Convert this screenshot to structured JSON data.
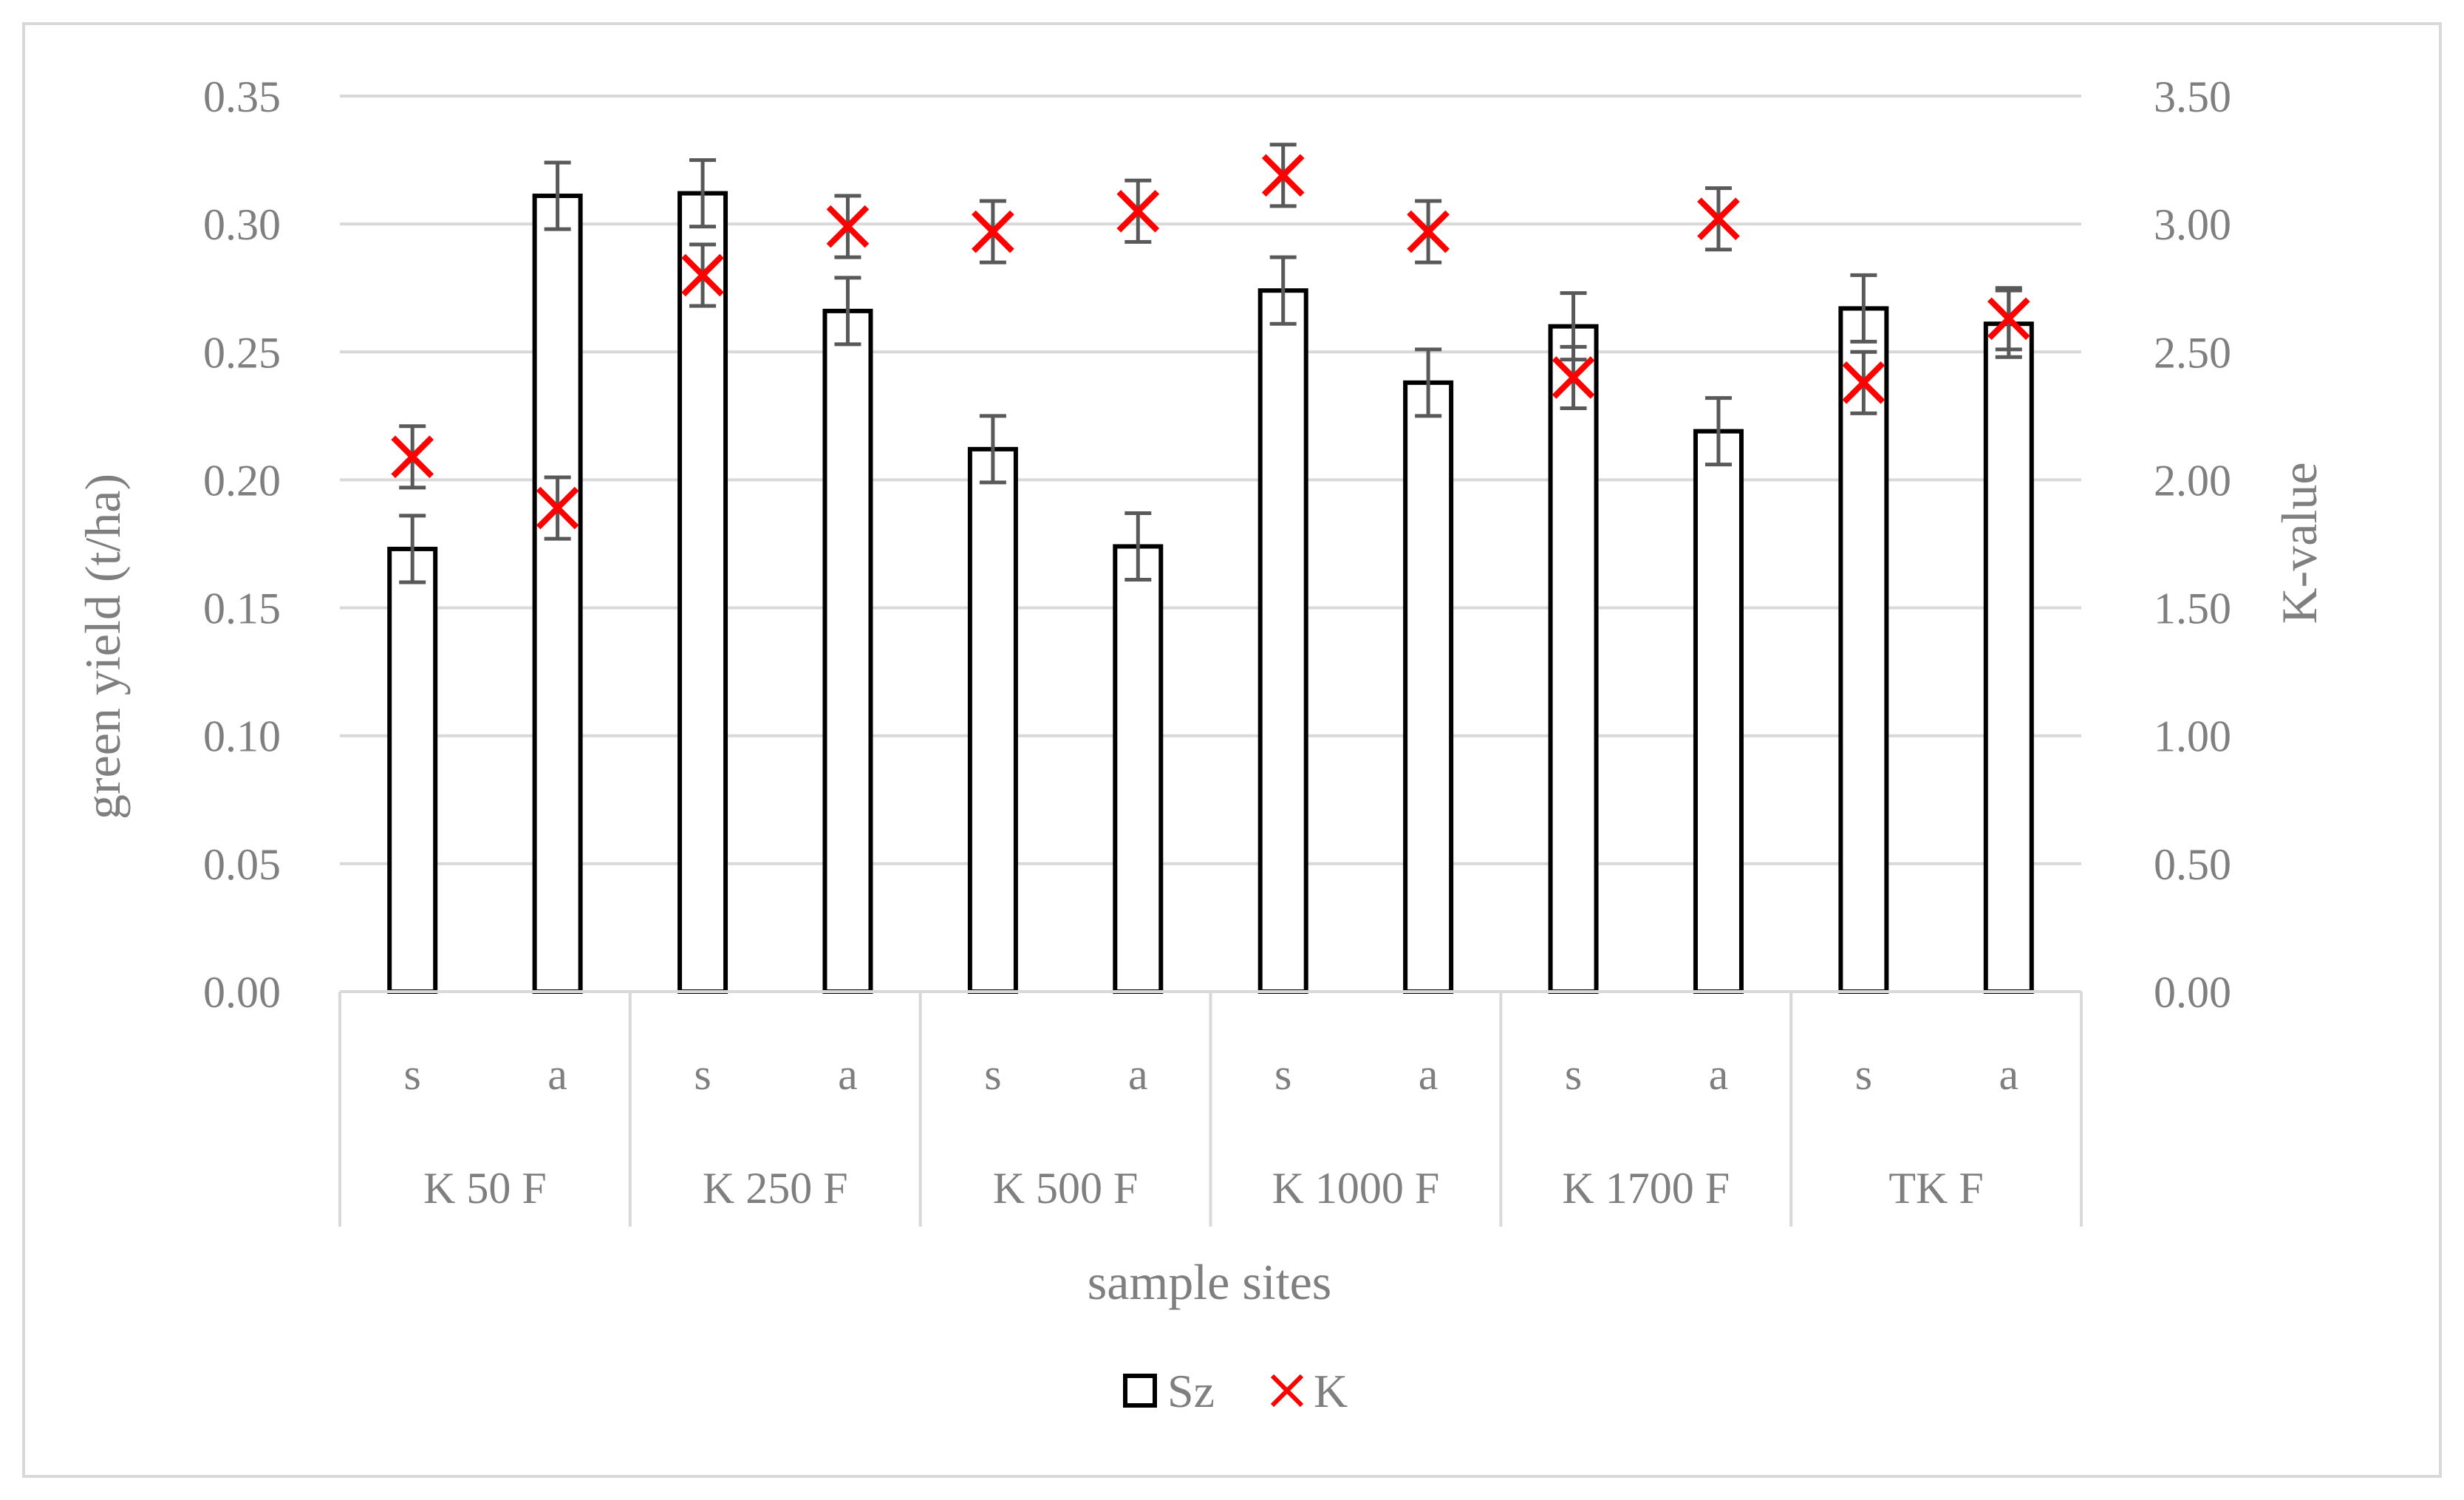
{
  "chart_data": {
    "type": "bar",
    "title": "",
    "xlabel": "sample sites",
    "ylabel": "green yield (t/ha)",
    "y2label": "K-value",
    "ylim": [
      0,
      0.35
    ],
    "y2lim": [
      0,
      3.5
    ],
    "yticks": [
      "0.00",
      "0.05",
      "0.10",
      "0.15",
      "0.20",
      "0.25",
      "0.30",
      "0.35"
    ],
    "y2ticks": [
      "0.00",
      "0.50",
      "1.00",
      "1.50",
      "2.00",
      "2.50",
      "3.00",
      "3.50"
    ],
    "grid": true,
    "legend_position": "bottom",
    "groups": [
      "K 50 F",
      "K 250 F",
      "K 500 F",
      "K 1000 F",
      "K 1700 F",
      "TK F"
    ],
    "subcategories": [
      "s",
      "a",
      "s",
      "a",
      "s",
      "a",
      "s",
      "a",
      "s",
      "a",
      "s",
      "a"
    ],
    "series": [
      {
        "name": "Sz",
        "type": "bar",
        "axis": "left",
        "values": [
          0.173,
          0.311,
          0.312,
          0.266,
          0.212,
          0.174,
          0.274,
          0.238,
          0.26,
          0.219,
          0.267,
          0.261
        ],
        "error": [
          0.013,
          0.013,
          0.013,
          0.013,
          0.013,
          0.013,
          0.013,
          0.013,
          0.013,
          0.013,
          0.013,
          0.013
        ],
        "color": "#000000"
      },
      {
        "name": "K",
        "type": "marker",
        "axis": "right",
        "values": [
          2.09,
          1.89,
          2.8,
          2.99,
          2.97,
          3.05,
          3.19,
          2.97,
          2.4,
          3.02,
          2.38,
          2.63
        ],
        "error": [
          0.12,
          0.12,
          0.12,
          0.12,
          0.12,
          0.12,
          0.12,
          0.12,
          0.12,
          0.12,
          0.12,
          0.12
        ],
        "color": "#ff0000"
      }
    ]
  }
}
